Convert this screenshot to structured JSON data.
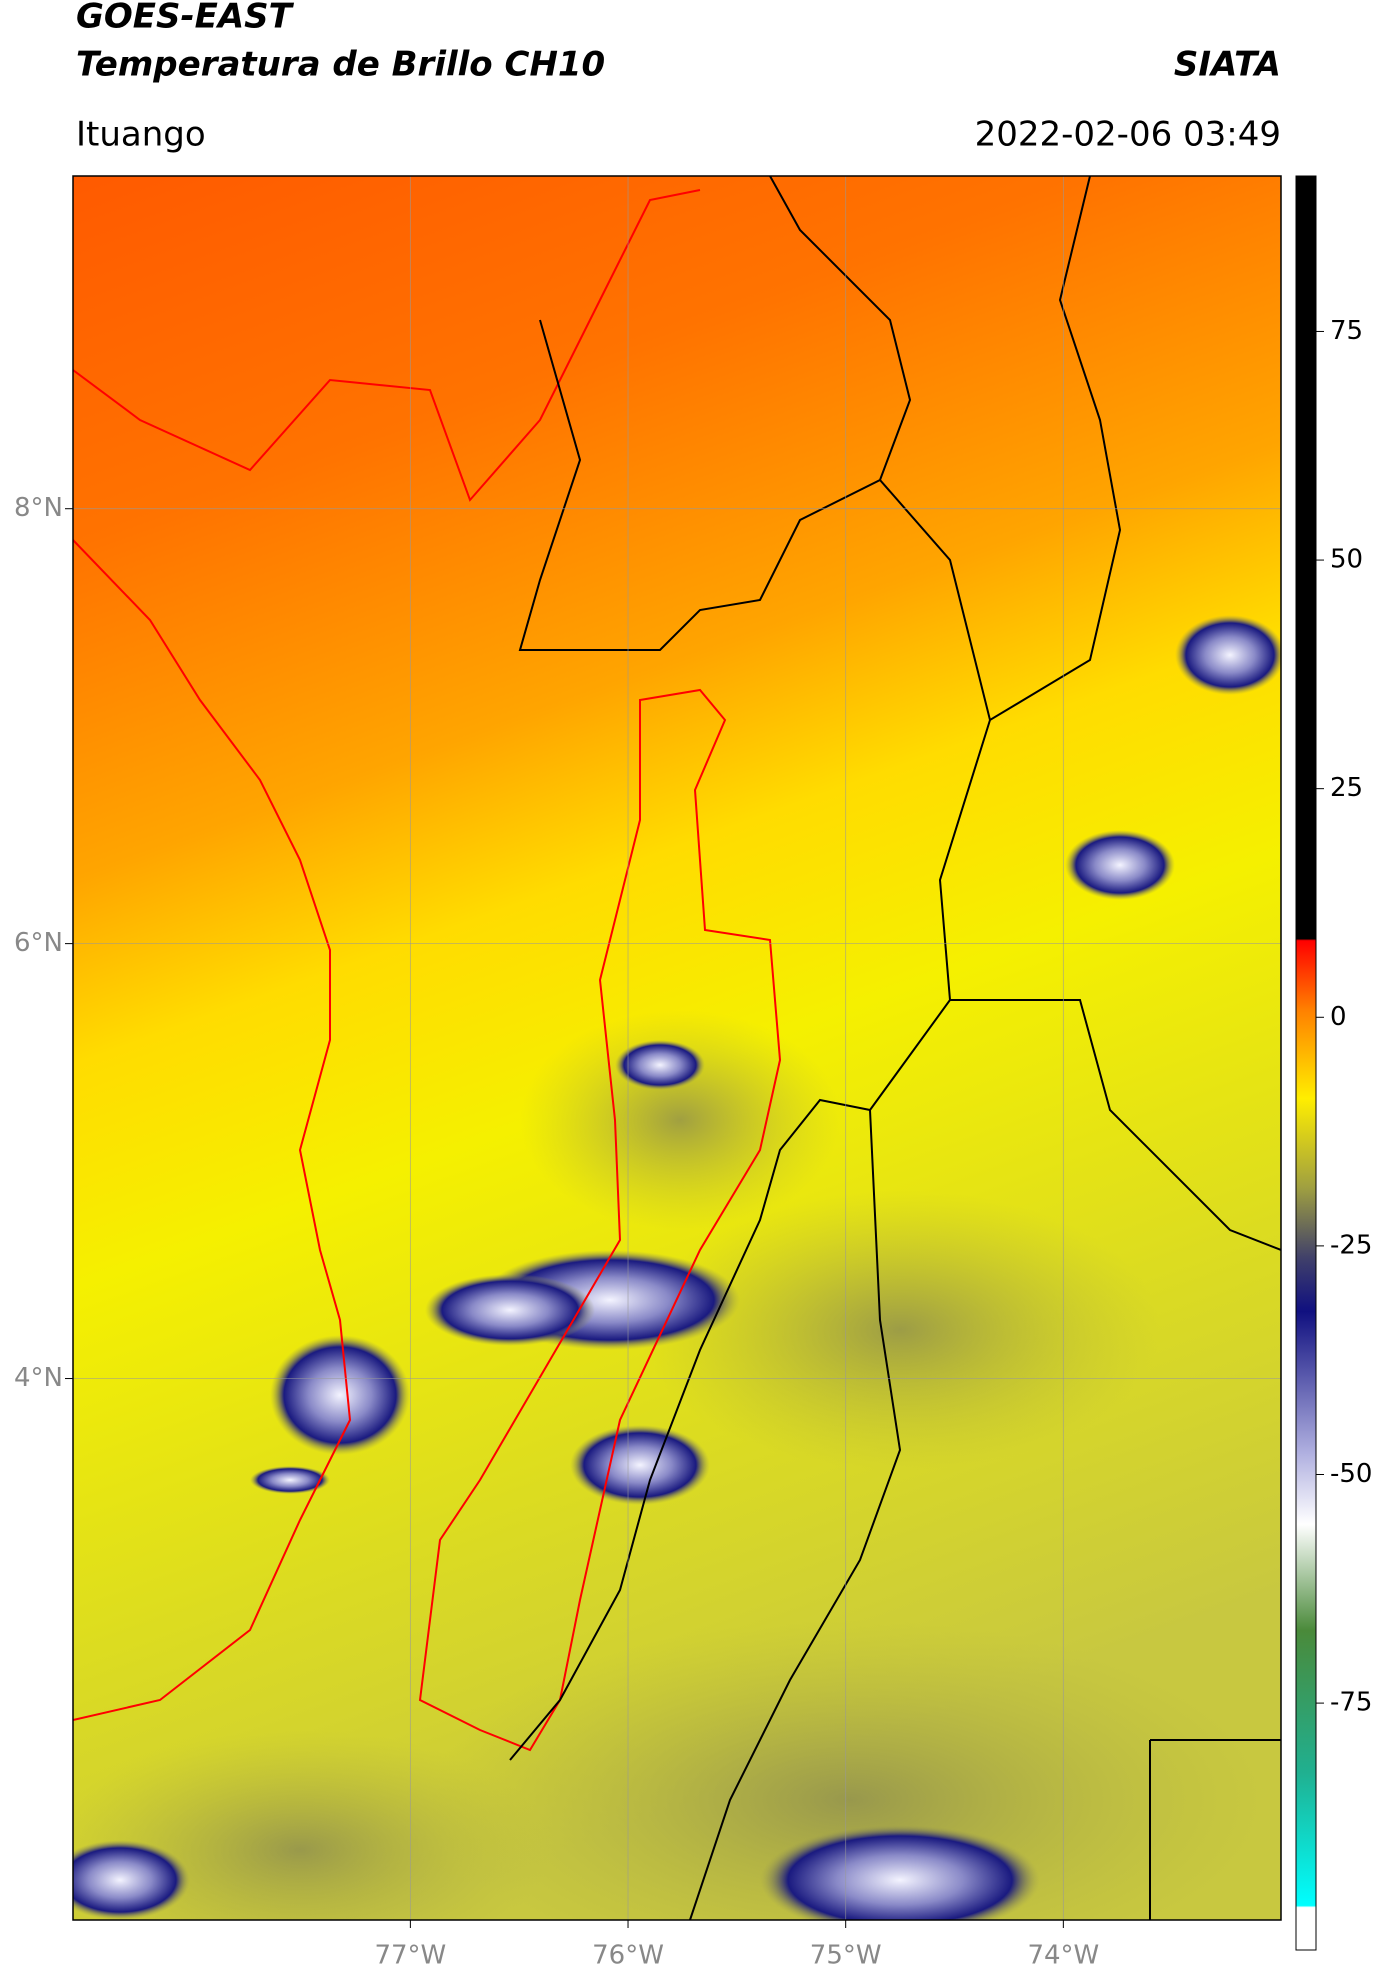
{
  "header": {
    "title": "GOES-EAST",
    "subtitle": "Temperatura de Brillo CH10",
    "source": "SIATA",
    "location": "Ituango",
    "datetime": "2022-02-06 03:49"
  },
  "map": {
    "xlim": [
      -78.55,
      -73.0
    ],
    "ylim": [
      1.51,
      9.53
    ],
    "xticks": [
      {
        "value": -77,
        "label": "77°W"
      },
      {
        "value": -76,
        "label": "76°W"
      },
      {
        "value": -75,
        "label": "75°W"
      },
      {
        "value": -74,
        "label": "74°W"
      }
    ],
    "yticks": [
      {
        "value": 4,
        "label": "4°N"
      },
      {
        "value": 6,
        "label": "6°N"
      },
      {
        "value": 8,
        "label": "8°N"
      }
    ],
    "grid": true
  },
  "colorbar": {
    "clim": [
      -102,
      92
    ],
    "ticks": [
      75,
      50,
      25,
      0,
      -25,
      -50,
      -75
    ]
  }
}
